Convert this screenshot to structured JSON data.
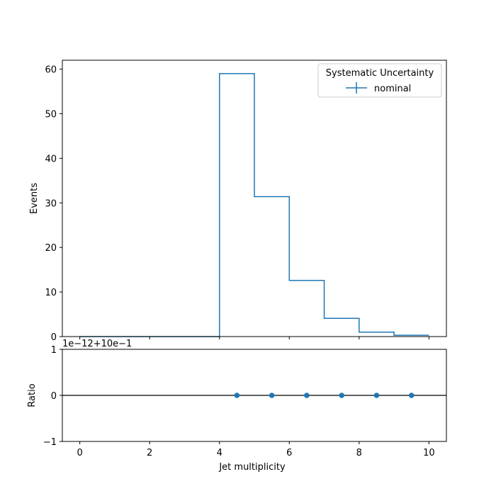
{
  "chart_data": [
    {
      "type": "line",
      "drawstyle": "step",
      "xlabel": "",
      "ylabel": "Events",
      "xlim": [
        -0.5,
        10.5
      ],
      "ylim": [
        0,
        62
      ],
      "xticks": [
        0,
        2,
        4,
        6,
        8,
        10
      ],
      "yticks": [
        0,
        10,
        20,
        30,
        40,
        50,
        60
      ],
      "x_tick_labels_shown": false,
      "grid": false,
      "legend": {
        "title": "Systematic Uncertainty",
        "placement": "top-right"
      },
      "bin_edges": [
        0,
        1,
        2,
        3,
        4,
        5,
        6,
        7,
        8,
        9,
        10
      ],
      "series": [
        {
          "name": "nominal",
          "color": "#1f77b4",
          "values": [
            0,
            0,
            0,
            0,
            59,
            31.4,
            12.6,
            4.1,
            1.0,
            0.3
          ]
        }
      ]
    },
    {
      "type": "scatter",
      "xlabel": "Jet multiplicity",
      "ylabel": "Ratio",
      "xlim": [
        -0.5,
        10.5
      ],
      "ylim": [
        -1,
        1
      ],
      "xticks": [
        0,
        2,
        4,
        6,
        8,
        10
      ],
      "yticks": [
        -1,
        0,
        1
      ],
      "offset_text": "1e−12+10e−1",
      "reference_line": 0,
      "grid": false,
      "series": [
        {
          "color": "#1f77b4",
          "x": [
            4.5,
            5.5,
            6.5,
            7.5,
            8.5,
            9.5
          ],
          "y": [
            0,
            0,
            0,
            0,
            0,
            0
          ]
        }
      ]
    }
  ]
}
